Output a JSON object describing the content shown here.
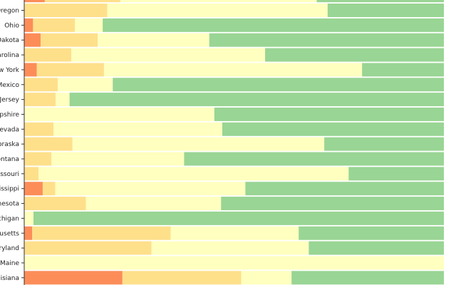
{
  "chart_data": {
    "type": "bar",
    "orientation": "horizontal",
    "stacked": true,
    "percent": true,
    "xlim": [
      0,
      100
    ],
    "grid": false,
    "legend": "none",
    "title": "",
    "xlabel": "",
    "ylabel": "",
    "colors": [
      "#fc8d59",
      "#fee08b",
      "#ffffbf",
      "#99d594"
    ],
    "categories": [
      "Oregon",
      "Ohio",
      "North Dakota",
      "North Carolina",
      "New York",
      "New Mexico",
      "New Jersey",
      "New Hampshire",
      "Nevada",
      "Nebraska",
      "Montana",
      "Missouri",
      "Mississippi",
      "Minnesota",
      "Michigan",
      "Massachusetts",
      "Maryland",
      "Maine",
      "Louisiana"
    ],
    "series": [
      {
        "values": [
          0.0,
          2.1,
          3.9,
          0.0,
          3.0,
          0.0,
          0.0,
          0.0,
          0.0,
          0.0,
          0.0,
          0.0,
          4.4,
          0.0,
          0.0,
          1.9,
          0.0,
          0.0,
          23.4
        ]
      },
      {
        "values": [
          19.8,
          10.0,
          13.6,
          11.2,
          16.0,
          8.0,
          7.5,
          0.0,
          7.0,
          11.5,
          6.5,
          3.4,
          3.0,
          14.7,
          0.0,
          33.0,
          30.3,
          0.0,
          28.3
        ]
      },
      {
        "values": [
          52.5,
          6.6,
          26.6,
          46.2,
          61.5,
          13.1,
          3.3,
          45.3,
          40.2,
          60.0,
          31.6,
          73.9,
          45.3,
          32.2,
          2.2,
          30.5,
          37.5,
          100.0,
          12.0
        ]
      },
      {
        "values": [
          27.7,
          81.3,
          55.9,
          42.6,
          19.5,
          78.9,
          89.2,
          54.7,
          52.8,
          28.5,
          61.9,
          22.7,
          47.3,
          53.1,
          97.8,
          34.6,
          32.2,
          0.0,
          36.3
        ]
      }
    ]
  }
}
